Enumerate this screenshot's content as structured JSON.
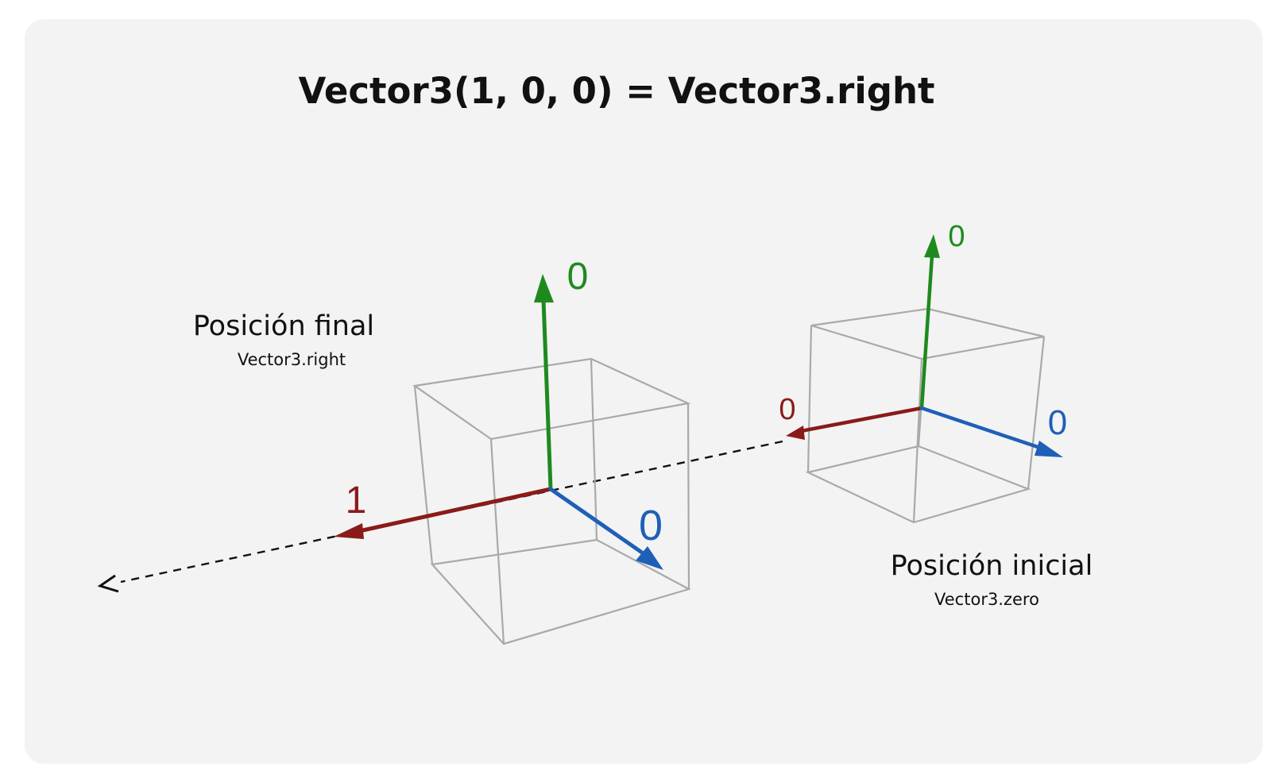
{
  "title": "Vector3(1, 0, 0) = Vector3.right",
  "final_position": {
    "label": "Posición final",
    "sublabel": "Vector3.right",
    "x_value": "1",
    "y_value": "0",
    "z_value": "0"
  },
  "initial_position": {
    "label": "Posición inicial",
    "sublabel": "Vector3.zero",
    "x_value": "0",
    "y_value": "0",
    "z_value": "0"
  },
  "colors": {
    "background": "#f3f3f3",
    "x_axis": "#8b1a1a",
    "y_axis": "#1e8a1e",
    "z_axis": "#1f5fb8",
    "cube_edge": "#a9a9a9",
    "path": "#111111"
  },
  "icons": {
    "direction_arrow": "dashed-arrow-left"
  }
}
